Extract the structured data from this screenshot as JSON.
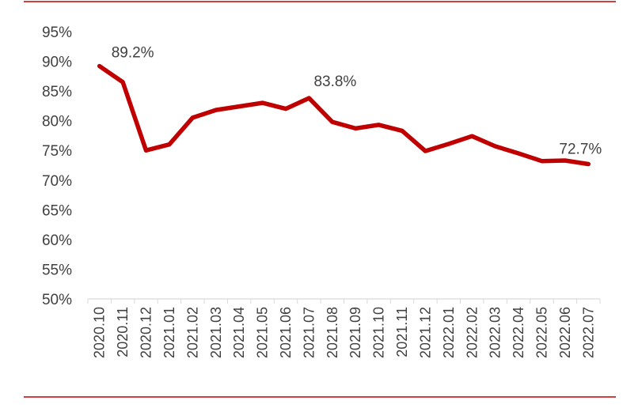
{
  "chart_data": {
    "type": "line",
    "x": [
      "2020.10",
      "2020.11",
      "2020.12",
      "2021.01",
      "2021.02",
      "2021.03",
      "2021.04",
      "2021.05",
      "2021.06",
      "2021.07",
      "2021.08",
      "2021.09",
      "2021.10",
      "2021.11",
      "2021.12",
      "2022.01",
      "2022.02",
      "2022.03",
      "2022.04",
      "2022.05",
      "2022.06",
      "2022.07"
    ],
    "series": [
      {
        "values": [
          89.2,
          86.5,
          75.0,
          76.0,
          80.5,
          81.8,
          82.4,
          83.0,
          82.0,
          83.8,
          79.8,
          78.7,
          79.3,
          78.3,
          74.9,
          76.1,
          77.4,
          75.7,
          74.5,
          73.2,
          73.3,
          72.7
        ],
        "color": "#C00000"
      }
    ],
    "data_labels": [
      {
        "index": 0,
        "text": "89.2%"
      },
      {
        "index": 9,
        "text": "83.8%"
      },
      {
        "index": 21,
        "text": "72.7%"
      }
    ],
    "y_ticks": [
      "50%",
      "55%",
      "60%",
      "65%",
      "70%",
      "75%",
      "80%",
      "85%",
      "90%",
      "95%"
    ],
    "ylim": [
      50,
      95
    ],
    "title": "",
    "xlabel": "",
    "ylabel": "",
    "grid": false,
    "legend": "none",
    "rule_color": "#C00000",
    "axis_color": "#D9D9D9"
  }
}
